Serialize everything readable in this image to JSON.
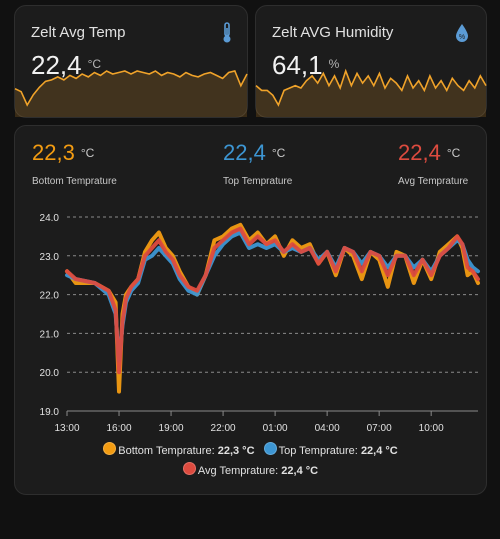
{
  "temp_card": {
    "title": "Zelt Avg Temp",
    "value": "22,4",
    "unit": "°C",
    "icon": "thermometer-icon",
    "color": "#f0a32a",
    "spark": [
      22.4,
      22.2,
      21.3,
      22.0,
      22.5,
      22.9,
      23.0,
      23.2,
      23.0,
      23.3,
      23.1,
      23.4,
      23.2,
      23.5,
      23.3,
      23.6,
      23.4,
      23.5,
      23.6,
      23.4,
      23.6,
      23.5,
      23.4,
      23.6,
      23.3,
      23.5,
      23.4,
      23.2,
      23.5,
      23.3,
      23.2,
      23.4,
      23.5,
      23.3,
      23.1,
      23.5,
      23.6,
      22.6,
      23.4
    ]
  },
  "hum_card": {
    "title": "Zelt AVG Humidity",
    "value": "64,1",
    "unit": "%",
    "icon": "water-drop-icon",
    "color": "#f0a32a",
    "spark": [
      62,
      60,
      60,
      58,
      54,
      60,
      61,
      62,
      61,
      64,
      66,
      63,
      67,
      62,
      66,
      61,
      68,
      62,
      67,
      63,
      66,
      62,
      67,
      61,
      65,
      63,
      60,
      66,
      61,
      64,
      60,
      66,
      61,
      64,
      60,
      65,
      62,
      60,
      64,
      61,
      66,
      62
    ]
  },
  "chart_card": {
    "stats": [
      {
        "value": "22,3",
        "unit": "°C",
        "label": "Bottom Temprature",
        "color": "#f39c12"
      },
      {
        "value": "22,4",
        "unit": "°C",
        "label": "Top Temprature",
        "color": "#3d96d3"
      },
      {
        "value": "22,4",
        "unit": "°C",
        "label": "Avg Temprature",
        "color": "#dd4b3f"
      }
    ],
    "legend": [
      {
        "name": "Bottom Temprature:",
        "value": "22,3 °C",
        "color": "#f39c12"
      },
      {
        "name": "Top Temprature:",
        "value": "22,4 °C",
        "color": "#3d96d3"
      },
      {
        "name": "Avg Temprature:",
        "value": "22,4 °C",
        "color": "#dd4b3f"
      }
    ]
  },
  "chart_data": {
    "type": "line",
    "title": "",
    "xlabel": "",
    "ylabel": "",
    "ylim": [
      19.0,
      24.0
    ],
    "y_ticks": [
      "24.0",
      "23.0",
      "22.0",
      "21.0",
      "20.0",
      "19.0"
    ],
    "x_ticks": [
      "13:00",
      "16:00",
      "19:00",
      "22:00",
      "01:00",
      "04:00",
      "07:00",
      "10:00"
    ],
    "grid": "horizontal-dashed",
    "x": [
      0,
      0.5,
      1.6,
      2.4,
      2.8,
      3.0,
      3.2,
      3.4,
      3.7,
      4.1,
      4.5,
      4.9,
      5.3,
      5.7,
      6.1,
      6.5,
      7.0,
      7.5,
      8.0,
      8.5,
      9.0,
      9.5,
      10.0,
      10.5,
      11.0,
      11.5,
      12.0,
      12.5,
      13.0,
      13.5,
      14.0,
      14.5,
      15.0,
      15.5,
      16.0,
      16.5,
      17.0,
      17.5,
      18.0,
      18.5,
      19.0,
      19.5,
      20.0,
      20.5,
      21.0,
      21.5,
      22.0,
      22.5,
      22.8,
      23.1,
      23.4,
      23.7
    ],
    "series": [
      {
        "name": "Bottom Temprature",
        "color": "#f39c12",
        "values": [
          22.6,
          22.3,
          22.3,
          22.1,
          21.8,
          19.5,
          21.5,
          22.0,
          22.2,
          22.4,
          23.1,
          23.4,
          23.6,
          23.2,
          23.0,
          22.6,
          22.2,
          22.0,
          22.5,
          23.4,
          23.5,
          23.7,
          23.8,
          23.4,
          23.6,
          23.3,
          23.5,
          23.0,
          23.4,
          23.2,
          23.3,
          22.8,
          23.1,
          22.5,
          23.2,
          23.0,
          22.4,
          23.1,
          22.9,
          22.2,
          23.1,
          23.0,
          22.3,
          22.9,
          22.4,
          23.1,
          23.3,
          23.5,
          23.2,
          22.5,
          22.6,
          22.3
        ]
      },
      {
        "name": "Top Temprature",
        "color": "#3d96d3",
        "values": [
          22.5,
          22.4,
          22.3,
          22.0,
          21.5,
          20.3,
          21.2,
          21.8,
          22.1,
          22.3,
          22.9,
          23.0,
          23.2,
          23.0,
          22.8,
          22.4,
          22.1,
          22.0,
          22.5,
          23.0,
          23.3,
          23.5,
          23.6,
          23.2,
          23.3,
          23.2,
          23.3,
          23.1,
          23.2,
          23.1,
          23.2,
          22.9,
          23.1,
          22.7,
          23.2,
          23.1,
          22.8,
          23.1,
          23.0,
          22.7,
          23.0,
          23.0,
          22.7,
          22.9,
          22.6,
          23.0,
          23.2,
          23.4,
          23.3,
          22.9,
          22.7,
          22.6
        ]
      },
      {
        "name": "Avg Temprature",
        "color": "#dd4b3f",
        "values": [
          22.6,
          22.4,
          22.3,
          22.1,
          21.6,
          20.0,
          21.3,
          21.9,
          22.2,
          22.4,
          23.0,
          23.2,
          23.4,
          23.1,
          22.9,
          22.5,
          22.2,
          22.1,
          22.5,
          23.2,
          23.4,
          23.6,
          23.7,
          23.3,
          23.5,
          23.3,
          23.4,
          23.1,
          23.3,
          23.1,
          23.2,
          22.8,
          23.1,
          22.6,
          23.2,
          23.1,
          22.6,
          23.1,
          23.0,
          22.5,
          23.0,
          23.0,
          22.5,
          22.9,
          22.5,
          23.0,
          23.2,
          23.5,
          23.3,
          22.7,
          22.6,
          22.4
        ]
      }
    ]
  }
}
